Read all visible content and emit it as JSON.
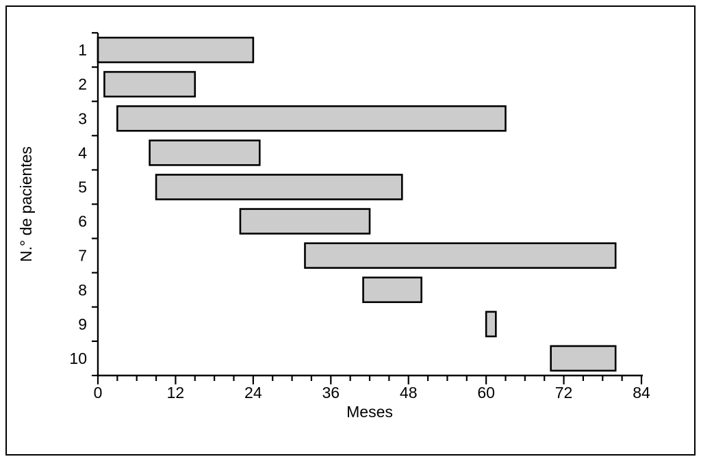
{
  "figure": {
    "background": "#ffffff",
    "frame_color": "#000000"
  },
  "chart_data": {
    "type": "bar",
    "orientation": "horizontal",
    "title": "",
    "xlabel": "Meses",
    "ylabel": "N.° de pacientes",
    "xlim": [
      0,
      84
    ],
    "x_major_ticks": [
      0,
      12,
      24,
      36,
      48,
      60,
      72,
      84
    ],
    "x_minor_tick_step": 3,
    "categories": [
      "1",
      "2",
      "3",
      "4",
      "5",
      "6",
      "7",
      "8",
      "9",
      "10"
    ],
    "bars": [
      {
        "category": "1",
        "start": 0,
        "end": 24
      },
      {
        "category": "2",
        "start": 1,
        "end": 15
      },
      {
        "category": "3",
        "start": 3,
        "end": 63
      },
      {
        "category": "4",
        "start": 8,
        "end": 25
      },
      {
        "category": "5",
        "start": 9,
        "end": 47
      },
      {
        "category": "6",
        "start": 22,
        "end": 42
      },
      {
        "category": "7",
        "start": 32,
        "end": 80
      },
      {
        "category": "8",
        "start": 41,
        "end": 50
      },
      {
        "category": "9",
        "start": 60,
        "end": 61.5
      },
      {
        "category": "10",
        "start": 70,
        "end": 80
      }
    ],
    "bar_fill": "#cccccc",
    "bar_border": "#000000",
    "axis_color": "#000000",
    "grid": false,
    "legend": false
  }
}
